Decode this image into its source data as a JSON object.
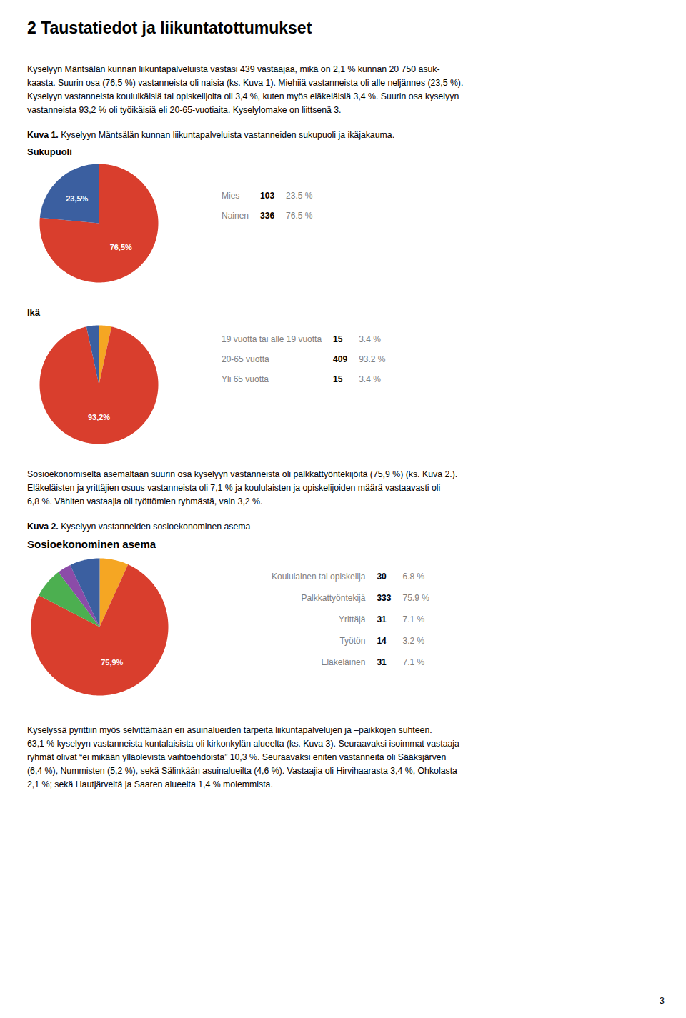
{
  "title": "2 Taustatiedot ja liikuntatottumukset",
  "paragraphs": [
    [
      "Kyselyyn Mäntsälän kunnan liikuntapalveluista vastasi 439 vastaajaa, mikä on 2,1 % kunnan 20 750 asuk-",
      "kaasta. Suurin osa (76,5 %) vastanneista oli naisia (ks. Kuva 1). Miehiiä vastanneista oli alle neljännes (23,5 %).",
      "Kyselyyn vastanneista kouluikäisiä tai opiskelijoita oli 3,4 %, kuten myös eläkeläisiä 3,4 %. Suurin osa kyselyyn",
      "vastanneista 93,2 % oli työikäisiä eli 20-65-vuotiaita. Kyselylomake on liittsenä 3."
    ],
    [
      "Sosioekonomiselta asemaltaan suurin osa kyselyyn vastanneista oli palkkattyöntekijöitä (75,9 %) (ks. Kuva 2.).",
      "Eläkeläisten ja yrittäjien osuus vastanneista oli 7,1 % ja koululaisten ja opiskelijoiden määrä vastaavasti oli",
      "6,8 %. Vähiten vastaajia oli työttömien ryhmästä, vain 3,2 %."
    ],
    [
      "Kyselyssä pyrittiin myös selvittämään eri asuinalueiden tarpeita liikuntapalvelujen ja –paikkojen suhteen.",
      "63,1 % kyselyyn vastanneista kuntalaisista oli kirkonkylän alueelta (ks. Kuva 3). Seuraavaksi isoimmat vastaaja",
      "ryhmät olivat “ei mikään ylläolevista vaihtoehdoista” 10,3 %. Seuraavaksi eniten vastanneita oli Sääksjärven",
      "(6,4 %), Nummisten (5,2 %), sekä Sälinkään asuinalueilta (4,6 %). Vastaajia oli Hirvihaarasta 3,4 %, Ohkolasta",
      "2,1 %; sekä Hautjärveltä ja Saaren alueelta 1,4 % molemmista."
    ]
  ],
  "captions": [
    {
      "bold": "Kuva 1.",
      "text": " Kyselyyn Mäntsälän kunnan liikuntapalveluista vastanneiden sukupuoli ja ikäjakauma."
    },
    {
      "bold": "Kuva 2.",
      "text": " Kyselyyn vastanneiden sosioekonominen asema"
    }
  ],
  "page_number": "3",
  "chart_data": [
    {
      "type": "pie",
      "title": "Sukupuoli",
      "values": [
        76.5,
        23.5
      ],
      "colors": [
        "#D93E2D",
        "#3B5FA0"
      ],
      "value_labels": [
        "76,5%",
        "23,5%"
      ],
      "table": [
        {
          "label": "Mies",
          "count": 103,
          "pct": "23.5 %"
        },
        {
          "label": "Nainen",
          "count": 336,
          "pct": "76.5 %"
        }
      ]
    },
    {
      "type": "pie",
      "title": "Ikä",
      "values": [
        3.4,
        93.2,
        3.4
      ],
      "colors": [
        "#F5A623",
        "#D93E2D",
        "#3B5FA0"
      ],
      "value_labels": [
        null,
        "93,2%",
        null
      ],
      "table": [
        {
          "label": "19 vuotta tai alle 19 vuotta",
          "count": 15,
          "pct": "3.4 %"
        },
        {
          "label": "20-65 vuotta",
          "count": 409,
          "pct": "93.2 %"
        },
        {
          "label": "Yli 65 vuotta",
          "count": 15,
          "pct": "3.4 %"
        }
      ]
    },
    {
      "type": "pie",
      "title": "Sosioekonominen asema",
      "values": [
        6.8,
        75.9,
        7.1,
        3.2,
        7.1
      ],
      "colors": [
        "#F5A623",
        "#D93E2D",
        "#4CAF50",
        "#8B4CA8",
        "#3B5FA0"
      ],
      "value_labels": [
        null,
        "75,9%",
        null,
        null,
        null
      ],
      "table": [
        {
          "label": "Koululainen tai opiskelija",
          "count": 30,
          "pct": "6.8 %"
        },
        {
          "label": "Palkkattyöntekijä",
          "count": 333,
          "pct": "75.9 %"
        },
        {
          "label": "Yrittäjä",
          "count": 31,
          "pct": "7.1 %"
        },
        {
          "label": "Työtön",
          "count": 14,
          "pct": "3.2 %"
        },
        {
          "label": "Eläkeläinen",
          "count": 31,
          "pct": "7.1 %"
        }
      ]
    }
  ]
}
